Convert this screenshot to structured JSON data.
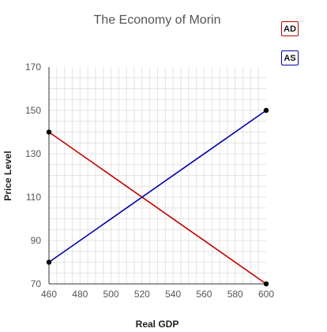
{
  "chart_data": {
    "type": "line",
    "title": "The Economy of Morin",
    "xlabel": "Real GDP",
    "ylabel": "Price Level",
    "xlim": [
      460,
      600
    ],
    "ylim": [
      70,
      170
    ],
    "x_ticks": [
      460,
      480,
      500,
      520,
      540,
      560,
      580,
      600
    ],
    "y_ticks": [
      70,
      90,
      110,
      130,
      150,
      170
    ],
    "grid": true,
    "legend_position": "top-right",
    "series": [
      {
        "name": "AD",
        "color": "#c00000",
        "points": [
          [
            460,
            140
          ],
          [
            600,
            70
          ]
        ]
      },
      {
        "name": "AS",
        "color": "#0000aa",
        "points": [
          [
            460,
            80
          ],
          [
            600,
            150
          ]
        ]
      }
    ]
  }
}
